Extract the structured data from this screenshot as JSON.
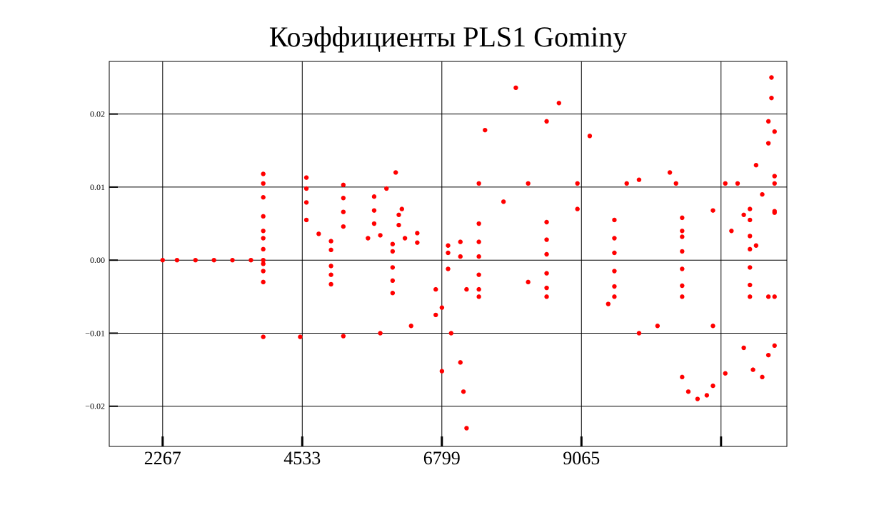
{
  "chart_data": {
    "type": "scatter",
    "title": "Коэффициенты PLS1 Gominy",
    "xlabel": "",
    "ylabel": "",
    "xlim": [
      1400,
      12400
    ],
    "ylim": [
      -0.0255,
      0.0272
    ],
    "x_ticks": [
      2267,
      4533,
      6799,
      9065,
      11331,
      13597
    ],
    "x_tick_labels": [
      "2267",
      "4533",
      "6799",
      "9065",
      "",
      ""
    ],
    "y_ticks": [
      -0.02,
      -0.01,
      0.0,
      0.01,
      0.02
    ],
    "y_tick_labels": [
      "−0.02",
      "−0.01",
      "0.00",
      "0.01",
      "0.02"
    ],
    "grid": true,
    "marker_color": "#ff0000",
    "series": [
      {
        "values": [
          [
            2267,
            0.0
          ],
          [
            2500,
            0.0
          ],
          [
            2800,
            0.0
          ],
          [
            3100,
            0.0
          ],
          [
            3400,
            0.0
          ],
          [
            3700,
            0.0
          ],
          [
            3900,
            0.0
          ],
          [
            3900,
            0.0118
          ],
          [
            4600,
            0.0113
          ],
          [
            5200,
            0.0103
          ],
          [
            5700,
            0.0087
          ],
          [
            6100,
            0.0062
          ],
          [
            6400,
            0.0037
          ],
          [
            3900,
            0.0105
          ],
          [
            4600,
            0.0098
          ],
          [
            5200,
            0.0085
          ],
          [
            5700,
            0.0068
          ],
          [
            6100,
            0.0048
          ],
          [
            3900,
            0.0086
          ],
          [
            4600,
            0.0079
          ],
          [
            5200,
            0.0066
          ],
          [
            5700,
            0.005
          ],
          [
            6200,
            0.003
          ],
          [
            3900,
            0.006
          ],
          [
            4600,
            0.0055
          ],
          [
            5200,
            0.0046
          ],
          [
            5800,
            0.0034
          ],
          [
            3900,
            0.004
          ],
          [
            4800,
            0.0036
          ],
          [
            5600,
            0.003
          ],
          [
            6400,
            0.0024
          ],
          [
            3900,
            0.003
          ],
          [
            5000,
            0.0026
          ],
          [
            6000,
            0.0022
          ],
          [
            6900,
            0.002
          ],
          [
            3900,
            0.0015
          ],
          [
            5000,
            0.0014
          ],
          [
            6000,
            0.0012
          ],
          [
            6900,
            0.001
          ],
          [
            3900,
            -0.0005
          ],
          [
            5000,
            -0.0008
          ],
          [
            6000,
            -0.001
          ],
          [
            6900,
            -0.0012
          ],
          [
            3900,
            -0.0015
          ],
          [
            5000,
            -0.002
          ],
          [
            6000,
            -0.0028
          ],
          [
            6700,
            -0.004
          ],
          [
            3900,
            -0.003
          ],
          [
            5000,
            -0.0033
          ],
          [
            6000,
            -0.0045
          ],
          [
            6800,
            -0.0065
          ],
          [
            3900,
            -0.0105
          ],
          [
            4500,
            -0.0105
          ],
          [
            5200,
            -0.0104
          ],
          [
            5800,
            -0.01
          ],
          [
            6300,
            -0.009
          ],
          [
            6700,
            -0.0075
          ],
          [
            6950,
            -0.01
          ],
          [
            7100,
            -0.014
          ],
          [
            7150,
            -0.018
          ],
          [
            7200,
            -0.023
          ],
          [
            6800,
            -0.0152
          ],
          [
            5900,
            0.0098
          ],
          [
            6050,
            0.012
          ],
          [
            6150,
            0.007
          ],
          [
            7100,
            0.0005
          ],
          [
            7100,
            0.0025
          ],
          [
            7200,
            -0.004
          ],
          [
            7400,
            0.0105
          ],
          [
            8200,
            0.0105
          ],
          [
            9000,
            0.0105
          ],
          [
            9800,
            0.0105
          ],
          [
            10600,
            0.0105
          ],
          [
            11400,
            0.0105
          ],
          [
            12200,
            0.0105
          ],
          [
            7400,
            0.005
          ],
          [
            8500,
            0.0052
          ],
          [
            9600,
            0.0055
          ],
          [
            10700,
            0.0058
          ],
          [
            11700,
            0.0062
          ],
          [
            12200,
            0.0065
          ],
          [
            7400,
            0.0025
          ],
          [
            8500,
            0.0028
          ],
          [
            9600,
            0.003
          ],
          [
            10700,
            0.0032
          ],
          [
            11800,
            0.0033
          ],
          [
            7400,
            0.0005
          ],
          [
            8500,
            0.0008
          ],
          [
            9600,
            0.001
          ],
          [
            10700,
            0.0012
          ],
          [
            11800,
            0.0015
          ],
          [
            7400,
            -0.002
          ],
          [
            8500,
            -0.0018
          ],
          [
            9600,
            -0.0015
          ],
          [
            10700,
            -0.0012
          ],
          [
            11800,
            -0.001
          ],
          [
            7400,
            -0.004
          ],
          [
            8500,
            -0.0038
          ],
          [
            9600,
            -0.0036
          ],
          [
            10700,
            -0.0035
          ],
          [
            11800,
            -0.0034
          ],
          [
            7400,
            -0.005
          ],
          [
            8500,
            -0.005
          ],
          [
            9600,
            -0.005
          ],
          [
            10700,
            -0.005
          ],
          [
            11800,
            -0.005
          ],
          [
            12200,
            -0.005
          ],
          [
            10700,
            0.004
          ],
          [
            11200,
            0.0068
          ],
          [
            11600,
            0.0105
          ],
          [
            11900,
            0.013
          ],
          [
            12100,
            0.016
          ],
          [
            12200,
            0.0176
          ],
          [
            11500,
            0.004
          ],
          [
            11800,
            0.007
          ],
          [
            12000,
            0.009
          ],
          [
            12200,
            0.0115
          ],
          [
            11800,
            0.0055
          ],
          [
            12200,
            0.0067
          ],
          [
            8000,
            0.0236
          ],
          [
            7500,
            0.0178
          ],
          [
            8500,
            0.019
          ],
          [
            8700,
            0.0215
          ],
          [
            9200,
            0.017
          ],
          [
            10000,
            0.011
          ],
          [
            10500,
            0.012
          ],
          [
            7800,
            0.008
          ],
          [
            8200,
            -0.003
          ],
          [
            9000,
            0.007
          ],
          [
            9500,
            -0.006
          ],
          [
            10000,
            -0.01
          ],
          [
            10300,
            -0.009
          ],
          [
            10700,
            -0.016
          ],
          [
            10800,
            -0.018
          ],
          [
            10950,
            -0.019
          ],
          [
            11100,
            -0.0185
          ],
          [
            11200,
            -0.0172
          ],
          [
            11200,
            -0.009
          ],
          [
            11700,
            -0.012
          ],
          [
            12000,
            -0.016
          ],
          [
            12100,
            -0.013
          ],
          [
            12100,
            -0.005
          ],
          [
            11900,
            0.002
          ],
          [
            12150,
            0.025
          ],
          [
            12150,
            0.0222
          ],
          [
            12100,
            0.019
          ],
          [
            12200,
            -0.0117
          ],
          [
            11850,
            -0.015
          ],
          [
            11400,
            -0.0155
          ]
        ]
      }
    ]
  }
}
